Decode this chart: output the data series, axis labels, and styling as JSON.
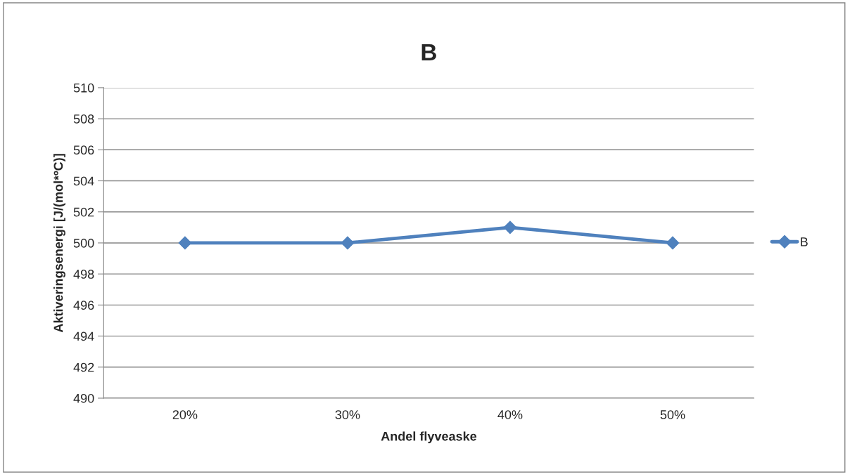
{
  "chart_data": {
    "type": "line",
    "title": "B",
    "xlabel": "Andel flyveaske",
    "ylabel": "Aktiveringsenergi [J/(mol*ºC)]",
    "categories": [
      "20%",
      "30%",
      "40%",
      "50%"
    ],
    "series": [
      {
        "name": "B",
        "color": "#4f81bd",
        "values": [
          500,
          500,
          501,
          500
        ]
      }
    ],
    "ylim": [
      490,
      510
    ],
    "yticks": [
      490,
      492,
      494,
      496,
      498,
      500,
      502,
      504,
      506,
      508,
      510
    ],
    "grid": "y",
    "legend": "right",
    "marker": "diamond",
    "line_style": "solid"
  }
}
